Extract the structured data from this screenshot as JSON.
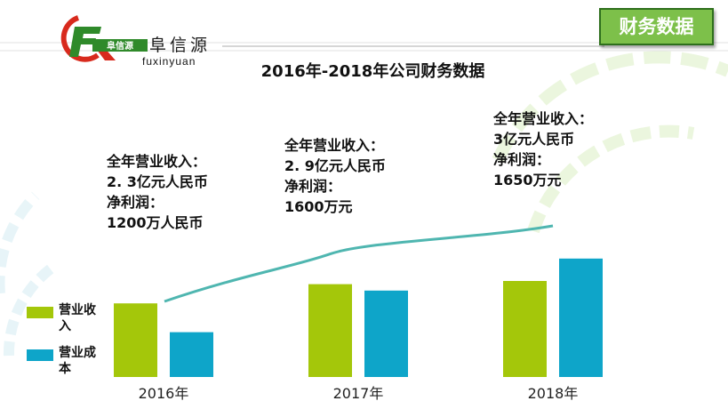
{
  "brand": {
    "name_cn": "阜信源",
    "name_en": "fuxinyuan",
    "logo_text": "阜信源"
  },
  "header": {
    "section_title": "财务数据",
    "subtitle": "2016年-2018年公司财务数据"
  },
  "annotations": [
    {
      "year": "2016年",
      "lines": [
        "全年营业收入：",
        "2. 3亿元人民币",
        "净利润：",
        "1200万人民币"
      ]
    },
    {
      "year": "2017年",
      "lines": [
        "全年营业收入：",
        "2. 9亿元人民币",
        "净利润：",
        "1600万元"
      ]
    },
    {
      "year": "2018年",
      "lines": [
        "全年营业收入：",
        "3亿元人民币",
        "净利润：",
        "1650万元"
      ]
    }
  ],
  "colors": {
    "revenue": "#a4c70a",
    "cost": "#0ea5c9",
    "trend": "#4fb6b0",
    "title_box": "#7dc04a"
  },
  "chart_data": {
    "type": "bar",
    "categories": [
      "2016年",
      "2017年",
      "2018年"
    ],
    "series": [
      {
        "name": "营业收入",
        "values": [
          2.3,
          2.9,
          3.0
        ]
      },
      {
        "name": "营业成本",
        "values": [
          1.4,
          2.7,
          3.7
        ]
      }
    ],
    "trend_line": {
      "series": "营业收入",
      "values": [
        2.3,
        2.9,
        3.0
      ]
    },
    "ylim": [
      0,
      6.5
    ],
    "legend": "left",
    "grid": false
  }
}
